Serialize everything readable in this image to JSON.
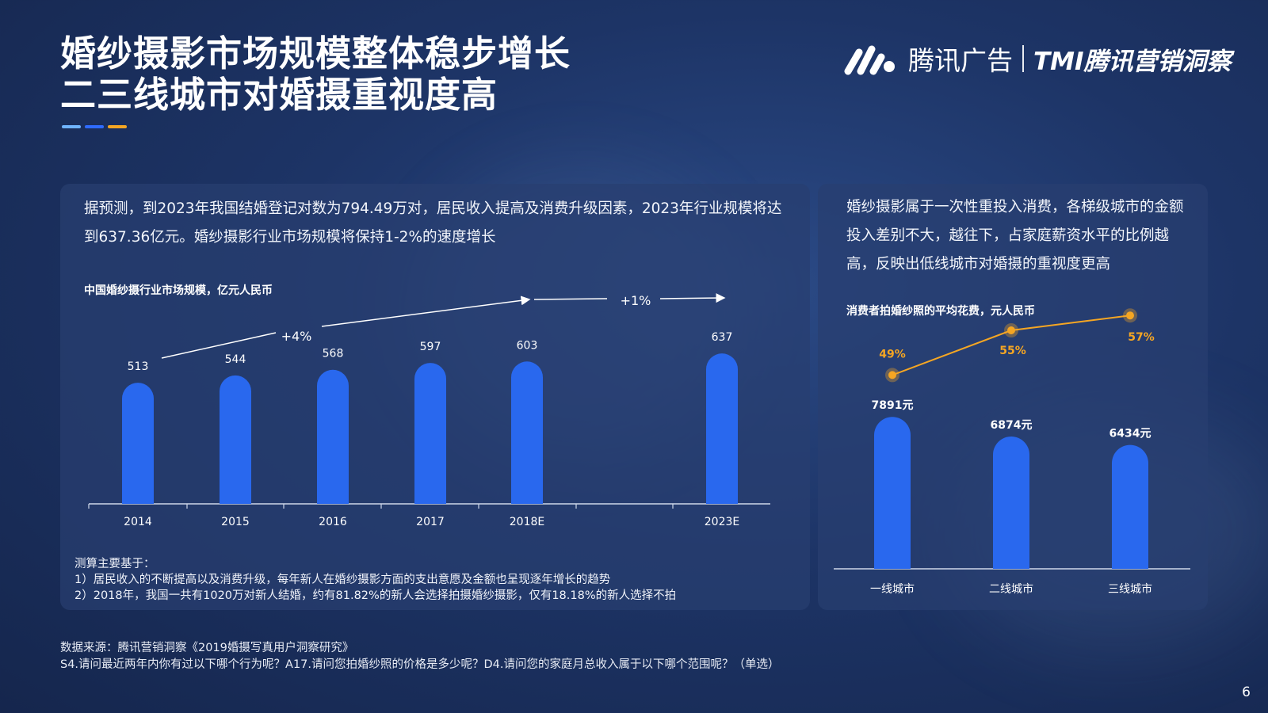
{
  "title": {
    "line1": "婚纱摄影市场规模整体稳步增长",
    "line2": "二三线城市对婚摄重视度高"
  },
  "brand": {
    "name": "腾讯广告",
    "sub": "TMI腾讯营销洞察",
    "logo_icon": "tencent-ads-logo-icon",
    "accent_colors": [
      "#6fb4ff",
      "#2f6bff",
      "#f5a623"
    ]
  },
  "left_panel": {
    "description": "据预测，到2023年我国结婚登记对数为794.49万对，居民收入提高及消费升级因素，2023年行业规模将达到637.36亿元。婚纱摄影行业市场规模将保持1-2%的速度增长",
    "notes": {
      "heading": "测算主要基于：",
      "items": [
        "1）居民收入的不断提高以及消费升级，每年新人在婚纱摄影方面的支出意愿及金额也呈现逐年增长的趋势",
        "2）2018年，我国一共有1020万对新人结婚，约有81.82%的新人会选择拍摄婚纱摄影，仅有18.18%的新人选择不拍"
      ]
    }
  },
  "right_panel": {
    "description": "婚纱摄影属于一次性重投入消费，各梯级城市的金额投入差别不大，越往下，占家庭薪资水平的比例越高，反映出低线城市对婚摄的重视度更高"
  },
  "chart_data": [
    {
      "type": "bar",
      "title": "中国婚纱摄行业市场规模，亿元人民币",
      "categories": [
        "2014",
        "2015",
        "2016",
        "2017",
        "2018E",
        "2023E"
      ],
      "values": [
        513,
        544,
        568,
        597,
        603,
        637
      ],
      "annotations": [
        "+4%",
        "+1%"
      ],
      "bar_color": "#2968ee"
    },
    {
      "type": "bar",
      "title": "消费者拍婚纱照的平均花费，元人民币",
      "categories": [
        "一线城市",
        "二线城市",
        "三线城市"
      ],
      "values": [
        7891,
        6874,
        6434
      ],
      "value_labels": [
        "7891元",
        "6874元",
        "6434元"
      ],
      "bar_color": "#2968ee",
      "line_series": {
        "values": [
          49,
          55,
          57
        ],
        "labels": [
          "49%",
          "55%",
          "57%"
        ],
        "color": "#f5a623"
      }
    }
  ],
  "footer": {
    "source": "数据来源：腾讯营销洞察《2019婚摄写真用户洞察研究》",
    "questions": "S4.请问最近两年内你有过以下哪个行为呢？A17.请问您拍婚纱照的价格是多少呢？D4.请问您的家庭月总收入属于以下哪个范围呢？（单选）"
  },
  "page_number": "6"
}
